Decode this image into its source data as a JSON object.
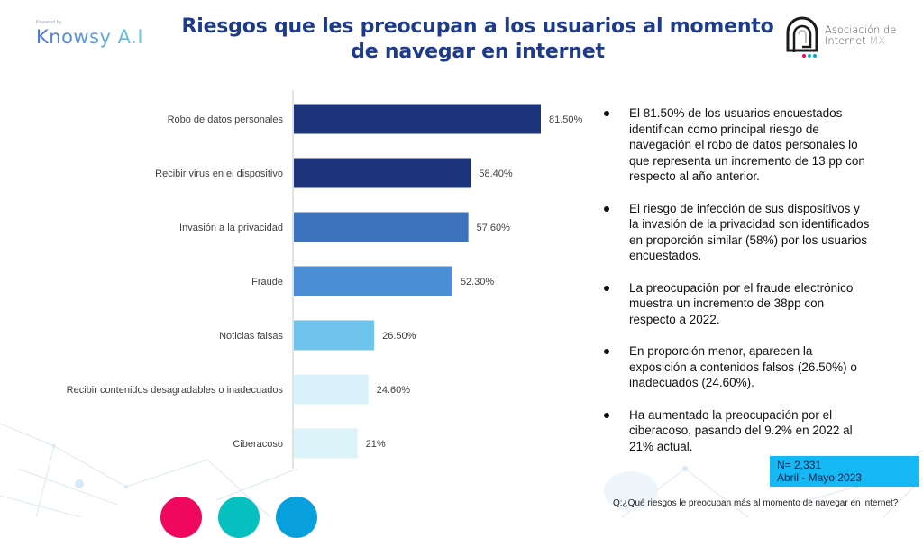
{
  "header": {
    "left_logo": {
      "powered_by": "Powered by",
      "brand": "Knowsy A.I"
    },
    "title": "Riesgos que les preocupan a los usuarios al momento de navegar en internet",
    "title_lines": [
      "Riesgos que les preocupan a los usuarios al momento",
      "de navegar en internet"
    ],
    "right_logo": {
      "line1": "Asociación de",
      "line2": "Internet",
      "line2_suffix": "MX",
      "icon": "aimx-logo-icon"
    }
  },
  "chart_data": {
    "type": "bar",
    "orientation": "horizontal",
    "title": "Riesgos que les preocupan a los usuarios al momento de navegar en internet",
    "xlabel": "",
    "ylabel": "",
    "xlim": [
      0,
      100
    ],
    "grid": false,
    "legend": "none",
    "categories": [
      "Robo de datos personales",
      "Recibir virus en el dispositivo",
      "Invasión a la privacidad",
      "Fraude",
      "Noticias falsas",
      "Recibir contenidos desagradables o inadecuados",
      "Ciberacoso"
    ],
    "values": [
      81.5,
      58.4,
      57.6,
      52.3,
      26.5,
      24.6,
      21
    ],
    "data_labels": [
      "81.50%",
      "58.40%",
      "57.60%",
      "52.30%",
      "26.50%",
      "24.60%",
      "21%"
    ],
    "colors": [
      "#1b347c",
      "#1b347c",
      "#3d73bd",
      "#4a8fd6",
      "#6ec4ec",
      "#d8f1fa",
      "#ddf3fa"
    ],
    "unit": "%"
  },
  "bullets": [
    "El 81.50% de los usuarios encuestados identifican como principal riesgo de navegación el robo de datos personales lo que representa un incremento de 13 pp con respecto al año anterior.",
    "El riesgo de infección de sus dispositivos y la invasión de la privacidad son identificados en proporción similar (58%) por los usuarios encuestados.",
    "La preocupación por el fraude electrónico muestra un incremento de 38pp con respecto a 2022.",
    "En proporción menor, aparecen la exposición a contenidos falsos (26.50%) o inadecuados (24.60%).",
    "Ha aumentado la preocupación por el ciberacoso, pasando del 9.2% en 2022 al 21% actual."
  ],
  "sample_box": {
    "n": "N= 2,331",
    "period": "Abril - Mayo 2023"
  },
  "question": "Q:¿Qué riesgos le preocupan más al momento de navegar en internet?",
  "footer_circles": [
    {
      "name": "pink-circle",
      "color": "#f0085e"
    },
    {
      "name": "teal-circle",
      "color": "#06bfbf"
    },
    {
      "name": "blue-circle",
      "color": "#08a0dc"
    }
  ],
  "theme": {
    "title_color": "#1e3a8a",
    "box_color": "#16b8f3"
  }
}
